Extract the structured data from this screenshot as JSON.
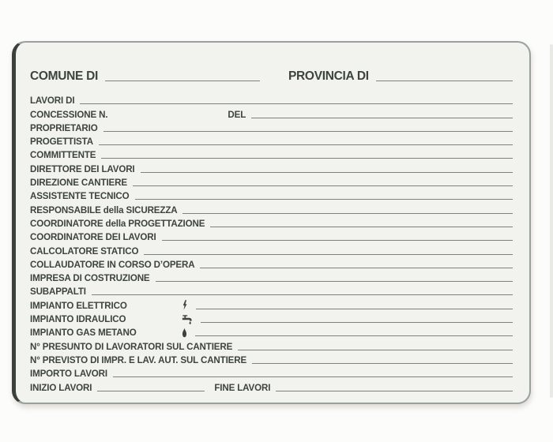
{
  "colors": {
    "text_color": "#3d443e",
    "line_color": "#7d827e",
    "card_background": "#f2f2ee",
    "page_background": "#fcfcfb",
    "card_border": "#9aa09c",
    "card_border_left": "#3c403a"
  },
  "header": {
    "comune_label": "COMUNE DI",
    "provincia_label": "PROVINCIA DI"
  },
  "rows": [
    {
      "segments": [
        {
          "kind": "label",
          "text": "LAVORI DI"
        },
        {
          "kind": "line"
        }
      ]
    },
    {
      "segments": [
        {
          "kind": "label",
          "text": "CONCESSIONE N."
        },
        {
          "kind": "space"
        },
        {
          "kind": "label",
          "text": "DEL"
        },
        {
          "kind": "line"
        }
      ]
    },
    {
      "segments": [
        {
          "kind": "label",
          "text": "PROPRIETARIO"
        },
        {
          "kind": "line"
        }
      ]
    },
    {
      "segments": [
        {
          "kind": "label",
          "text": "PROGETTISTA"
        },
        {
          "kind": "line"
        }
      ]
    },
    {
      "segments": [
        {
          "kind": "label",
          "text": "COMMITTENTE"
        },
        {
          "kind": "line"
        }
      ]
    },
    {
      "segments": [
        {
          "kind": "label",
          "text": "DIRETTORE DEI LAVORI"
        },
        {
          "kind": "line"
        }
      ]
    },
    {
      "segments": [
        {
          "kind": "label",
          "text": "DIREZIONE CANTIERE"
        },
        {
          "kind": "line"
        }
      ]
    },
    {
      "segments": [
        {
          "kind": "label",
          "text": "ASSISTENTE TECNICO"
        },
        {
          "kind": "line"
        }
      ]
    },
    {
      "segments": [
        {
          "kind": "label",
          "text": "RESPONSABILE della SICUREZZA"
        },
        {
          "kind": "line"
        }
      ]
    },
    {
      "segments": [
        {
          "kind": "label",
          "text": "COORDINATORE della PROGETTAZIONE"
        },
        {
          "kind": "line"
        }
      ]
    },
    {
      "segments": [
        {
          "kind": "label",
          "text": "COORDINATORE DEI LAVORI"
        },
        {
          "kind": "line"
        }
      ]
    },
    {
      "segments": [
        {
          "kind": "label",
          "text": "CALCOLATORE STATICO"
        },
        {
          "kind": "line"
        }
      ]
    },
    {
      "segments": [
        {
          "kind": "label",
          "text": "COLLAUDATORE IN CORSO D’OPERA"
        },
        {
          "kind": "line"
        }
      ]
    },
    {
      "segments": [
        {
          "kind": "label",
          "text": "IMPRESA DI COSTRUZIONE"
        },
        {
          "kind": "line"
        }
      ]
    },
    {
      "segments": [
        {
          "kind": "label",
          "text": "SUBAPPALTI"
        },
        {
          "kind": "line"
        }
      ]
    },
    {
      "segments": [
        {
          "kind": "label",
          "text": "IMPIANTO ELETTRICO"
        },
        {
          "kind": "icon",
          "icon": "lightning-icon"
        },
        {
          "kind": "line"
        }
      ]
    },
    {
      "segments": [
        {
          "kind": "label",
          "text": "IMPIANTO IDRAULICO"
        },
        {
          "kind": "icon",
          "icon": "faucet-icon"
        },
        {
          "kind": "line"
        }
      ]
    },
    {
      "segments": [
        {
          "kind": "label",
          "text": "IMPIANTO GAS METANO"
        },
        {
          "kind": "icon",
          "icon": "flame-icon"
        },
        {
          "kind": "line"
        }
      ]
    },
    {
      "segments": [
        {
          "kind": "label",
          "text": "N° PRESUNTO DI LAVORATORI SUL CANTIERE"
        },
        {
          "kind": "line"
        }
      ]
    },
    {
      "segments": [
        {
          "kind": "label",
          "text": "N° PREVISTO DI IMPR. E LAV. AUT. SUL CANTIERE"
        },
        {
          "kind": "line"
        }
      ]
    },
    {
      "segments": [
        {
          "kind": "label",
          "text": "IMPORTO LAVORI"
        },
        {
          "kind": "line"
        }
      ]
    },
    {
      "segments": [
        {
          "kind": "label",
          "text": "INIZIO LAVORI"
        },
        {
          "kind": "shortline"
        },
        {
          "kind": "label",
          "text": "FINE LAVORI"
        },
        {
          "kind": "line"
        }
      ]
    }
  ]
}
